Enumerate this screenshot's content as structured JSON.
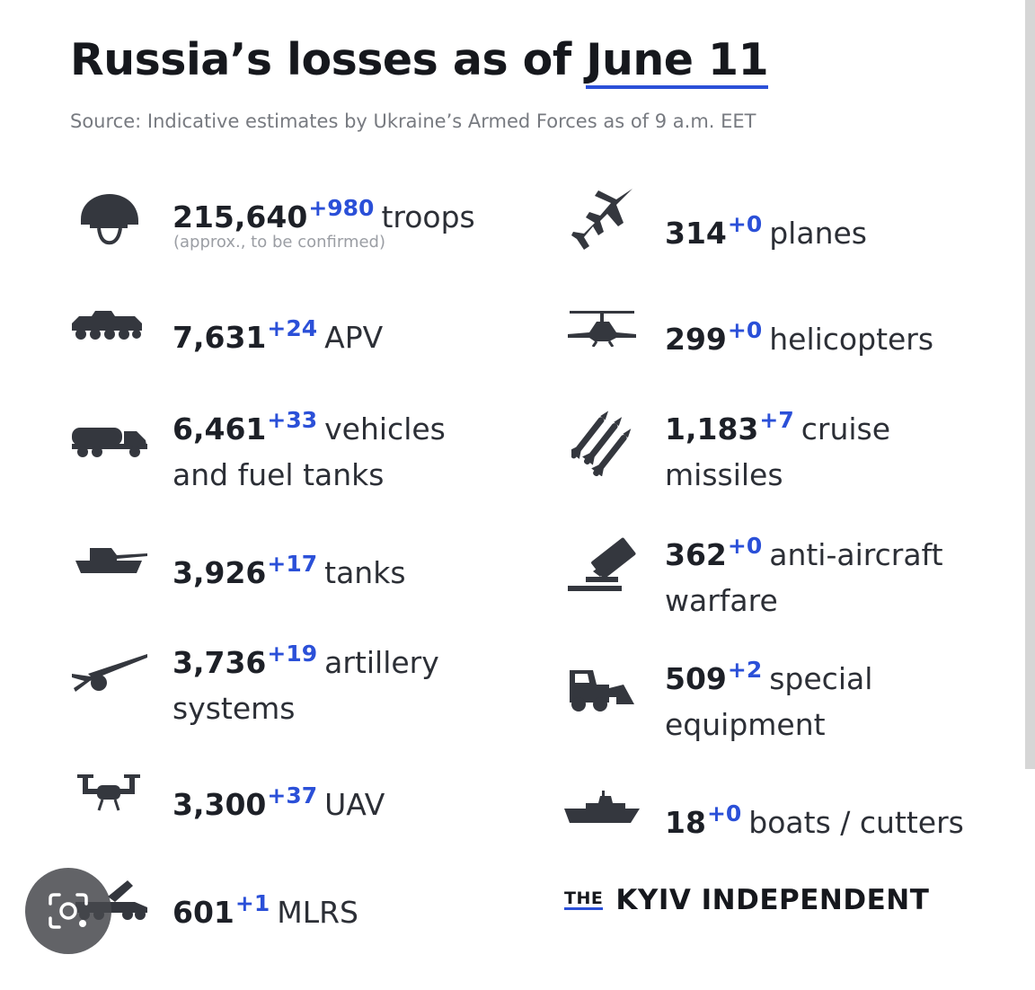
{
  "header": {
    "title_prefix": "Russia’s losses as of ",
    "title_date": "June 11",
    "source": "Source: Indicative estimates by Ukraine’s Armed Forces as of 9 a.m. EET"
  },
  "stats": [
    {
      "icon": "helmet-icon",
      "value": "215,640",
      "delta": "+980",
      "label": "troops",
      "label2": "",
      "note": "(approx., to be confirmed)"
    },
    {
      "icon": "apv-icon",
      "value": "7,631",
      "delta": "+24",
      "label": "APV",
      "label2": ""
    },
    {
      "icon": "fuel-truck-icon",
      "value": "6,461",
      "delta": "+33",
      "label": "vehicles",
      "label2": "and fuel tanks"
    },
    {
      "icon": "tank-icon",
      "value": "3,926",
      "delta": "+17",
      "label": "tanks",
      "label2": ""
    },
    {
      "icon": "artillery-icon",
      "value": "3,736",
      "delta": "+19",
      "label": "artillery",
      "label2": "systems"
    },
    {
      "icon": "drone-icon",
      "value": "3,300",
      "delta": "+37",
      "label": "UAV",
      "label2": ""
    },
    {
      "icon": "mlrs-icon",
      "value": "601",
      "delta": "+1",
      "label": "MLRS",
      "label2": ""
    },
    {
      "icon": "plane-icon",
      "value": "314",
      "delta": "+0",
      "label": "planes",
      "label2": ""
    },
    {
      "icon": "helicopter-icon",
      "value": "299",
      "delta": "+0",
      "label": "helicopters",
      "label2": ""
    },
    {
      "icon": "missiles-icon",
      "value": "1,183",
      "delta": "+7",
      "label": "cruise",
      "label2": "missiles"
    },
    {
      "icon": "anti-aircraft-icon",
      "value": "362",
      "delta": "+0",
      "label": "anti-aircraft",
      "label2": "warfare"
    },
    {
      "icon": "special-equipment-icon",
      "value": "509",
      "delta": "+2",
      "label": "special",
      "label2": "equipment"
    },
    {
      "icon": "boat-icon",
      "value": "18",
      "delta": "+0",
      "label": "boats / cutters",
      "label2": ""
    }
  ],
  "brand": {
    "the": "THE",
    "name": "KYIV INDEPENDENT"
  },
  "overlay": {
    "icon": "lens-search-icon"
  },
  "colors": {
    "accent": "#2b50d8",
    "text": "#2c2f36",
    "icon": "#34373e"
  }
}
